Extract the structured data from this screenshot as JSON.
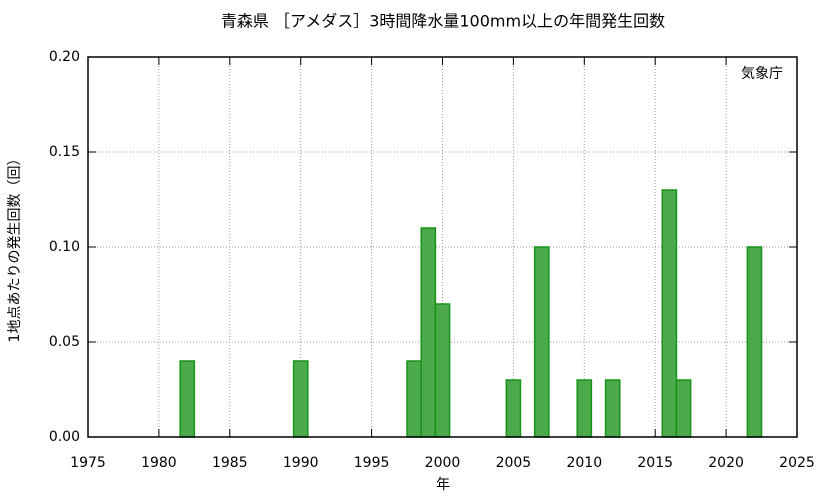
{
  "chart_data": {
    "type": "bar",
    "title": "青森県 ［アメダス］3時間降水量100mm以上の年間発生回数",
    "annotation": "気象庁",
    "xlabel": "年",
    "ylabel": "1地点あたりの発生回数（回）",
    "x": [
      1982,
      1990,
      1998,
      1999,
      2000,
      2005,
      2007,
      2010,
      2012,
      2016,
      2017,
      2022
    ],
    "values": [
      0.04,
      0.04,
      0.04,
      0.11,
      0.07,
      0.03,
      0.1,
      0.03,
      0.03,
      0.13,
      0.03,
      0.1
    ],
    "color": "#4caa4c",
    "edge_color": "#169216",
    "xlim": [
      1975,
      2025
    ],
    "xticks": [
      1975,
      1980,
      1985,
      1990,
      1995,
      2000,
      2005,
      2010,
      2015,
      2020,
      2025
    ],
    "ylim": [
      0,
      0.2
    ],
    "yticks": [
      {
        "value": 0,
        "label": "0.00"
      },
      {
        "value": 0.05,
        "label": "0.05"
      },
      {
        "value": 0.1,
        "label": "0.10"
      },
      {
        "value": 0.15,
        "label": "0.15"
      },
      {
        "value": 0.2,
        "label": "0.20"
      }
    ],
    "grid": true
  }
}
